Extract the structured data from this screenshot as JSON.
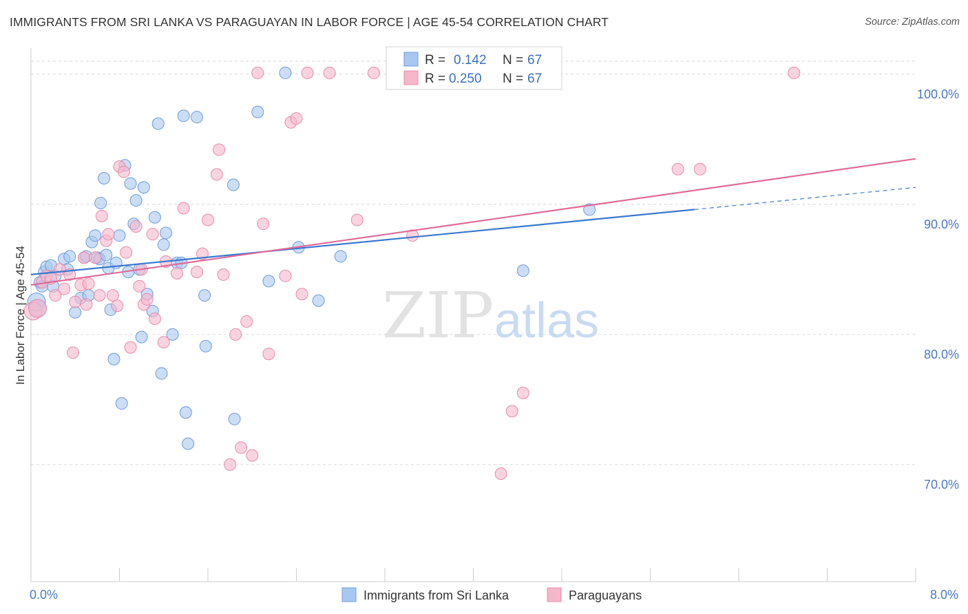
{
  "title": "IMMIGRANTS FROM SRI LANKA VS PARAGUAYAN IN LABOR FORCE | AGE 45-54 CORRELATION CHART",
  "source": "Source: ZipAtlas.com",
  "colors": {
    "blue_fill": "#a9c8f0",
    "blue_stroke": "#6f9bd8",
    "blue_line": "#3a78d0",
    "pink_fill": "#f5b8cb",
    "pink_stroke": "#e88aaa",
    "pink_line": "#e06a98",
    "tick_label": "#4a78c4",
    "grid": "#d8d8d8"
  },
  "watermark": {
    "zip": "ZIP",
    "atlas": "atlas"
  },
  "legend": {
    "rows": [
      {
        "r_label": "R =",
        "r_value": "0.142",
        "n_label": "N =",
        "n_value": "67"
      },
      {
        "r_label": "R =",
        "r_value": "0.250",
        "n_label": "N =",
        "n_value": "67"
      }
    ]
  },
  "chart_data": {
    "type": "scatter",
    "title": "IMMIGRANTS FROM SRI LANKA VS PARAGUAYAN IN LABOR FORCE | AGE 45-54 CORRELATION CHART",
    "xlabel": "",
    "ylabel": "In Labor Force | Age 45-54",
    "xlim": [
      0,
      8
    ],
    "ylim": [
      61,
      102
    ],
    "x_tick_labels": [
      {
        "value": 0,
        "label": "0.0%"
      },
      {
        "value": 8,
        "label": "8.0%"
      }
    ],
    "y_tick_labels": [
      {
        "value": 100,
        "label": "100.0%"
      },
      {
        "value": 90,
        "label": "90.0%"
      },
      {
        "value": 80,
        "label": "80.0%"
      },
      {
        "value": 70,
        "label": "70.0%"
      }
    ],
    "grid": true,
    "legend_placement": "top-center",
    "series": [
      {
        "name": "Immigrants from Sri Lanka",
        "color": "#a9c8f0",
        "trend": {
          "x": [
            0,
            6.0
          ],
          "y": [
            84.6,
            89.6
          ],
          "dashed_to": [
            8.0,
            91.3
          ]
        },
        "points": [
          [
            0.05,
            82.5
          ],
          [
            0.06,
            82.0
          ],
          [
            0.08,
            84.0
          ],
          [
            0.1,
            83.7
          ],
          [
            0.12,
            84.8
          ],
          [
            0.14,
            85.2
          ],
          [
            0.18,
            85.3
          ],
          [
            0.2,
            83.7
          ],
          [
            0.22,
            84.5
          ],
          [
            0.3,
            85.8
          ],
          [
            0.33,
            85.0
          ],
          [
            0.35,
            86.0
          ],
          [
            0.4,
            81.7
          ],
          [
            0.45,
            82.8
          ],
          [
            0.48,
            85.9
          ],
          [
            0.5,
            86.0
          ],
          [
            0.52,
            83.0
          ],
          [
            0.55,
            87.1
          ],
          [
            0.58,
            87.6
          ],
          [
            0.6,
            85.9
          ],
          [
            0.62,
            85.8
          ],
          [
            0.63,
            90.1
          ],
          [
            0.66,
            92.0
          ],
          [
            0.68,
            86.1
          ],
          [
            0.7,
            85.1
          ],
          [
            0.72,
            81.9
          ],
          [
            0.75,
            78.1
          ],
          [
            0.77,
            85.5
          ],
          [
            0.8,
            87.6
          ],
          [
            0.82,
            74.7
          ],
          [
            0.85,
            93.0
          ],
          [
            0.88,
            84.8
          ],
          [
            0.9,
            91.6
          ],
          [
            0.93,
            88.5
          ],
          [
            0.95,
            90.3
          ],
          [
            0.98,
            85.0
          ],
          [
            1.0,
            79.8
          ],
          [
            1.02,
            91.3
          ],
          [
            1.05,
            83.1
          ],
          [
            1.1,
            81.8
          ],
          [
            1.12,
            89.0
          ],
          [
            1.15,
            96.2
          ],
          [
            1.18,
            77.0
          ],
          [
            1.2,
            86.9
          ],
          [
            1.22,
            87.8
          ],
          [
            1.28,
            80.0
          ],
          [
            1.32,
            85.5
          ],
          [
            1.36,
            85.5
          ],
          [
            1.38,
            96.8
          ],
          [
            1.4,
            74.0
          ],
          [
            1.42,
            71.6
          ],
          [
            1.5,
            96.7
          ],
          [
            1.57,
            83.0
          ],
          [
            1.58,
            79.1
          ],
          [
            1.83,
            91.5
          ],
          [
            1.84,
            73.5
          ],
          [
            2.05,
            97.1
          ],
          [
            2.15,
            84.1
          ],
          [
            2.3,
            100.1
          ],
          [
            2.42,
            86.7
          ],
          [
            2.6,
            82.6
          ],
          [
            2.8,
            86.0
          ],
          [
            4.45,
            84.9
          ],
          [
            5.05,
            89.6
          ]
        ]
      },
      {
        "name": "Paraguayans",
        "color": "#f5b8cb",
        "trend": {
          "x": [
            0,
            8.0
          ],
          "y": [
            83.8,
            93.5
          ]
        },
        "points": [
          [
            0.02,
            81.8
          ],
          [
            0.06,
            82.0
          ],
          [
            0.1,
            84.0
          ],
          [
            0.14,
            84.5
          ],
          [
            0.18,
            84.3
          ],
          [
            0.22,
            83.0
          ],
          [
            0.26,
            85.0
          ],
          [
            0.3,
            83.5
          ],
          [
            0.35,
            84.6
          ],
          [
            0.38,
            78.6
          ],
          [
            0.4,
            82.5
          ],
          [
            0.45,
            83.8
          ],
          [
            0.48,
            85.9
          ],
          [
            0.5,
            82.3
          ],
          [
            0.52,
            83.9
          ],
          [
            0.58,
            85.9
          ],
          [
            0.62,
            83.0
          ],
          [
            0.64,
            89.1
          ],
          [
            0.68,
            87.2
          ],
          [
            0.7,
            87.7
          ],
          [
            0.74,
            83.0
          ],
          [
            0.78,
            82.2
          ],
          [
            0.8,
            92.9
          ],
          [
            0.84,
            92.5
          ],
          [
            0.86,
            86.3
          ],
          [
            0.9,
            79.0
          ],
          [
            0.95,
            88.3
          ],
          [
            0.98,
            83.7
          ],
          [
            1.0,
            85.0
          ],
          [
            1.02,
            82.3
          ],
          [
            1.05,
            82.7
          ],
          [
            1.1,
            87.7
          ],
          [
            1.12,
            81.2
          ],
          [
            1.2,
            79.4
          ],
          [
            1.22,
            85.6
          ],
          [
            1.32,
            84.7
          ],
          [
            1.38,
            89.7
          ],
          [
            1.5,
            84.8
          ],
          [
            1.55,
            86.2
          ],
          [
            1.6,
            88.8
          ],
          [
            1.68,
            92.3
          ],
          [
            1.7,
            94.2
          ],
          [
            1.74,
            84.6
          ],
          [
            1.8,
            70.0
          ],
          [
            1.85,
            80.0
          ],
          [
            1.9,
            71.3
          ],
          [
            1.95,
            81.0
          ],
          [
            2.0,
            70.7
          ],
          [
            2.05,
            100.1
          ],
          [
            2.1,
            88.5
          ],
          [
            2.15,
            78.5
          ],
          [
            2.3,
            84.5
          ],
          [
            2.35,
            96.3
          ],
          [
            2.4,
            96.6
          ],
          [
            2.45,
            83.1
          ],
          [
            2.5,
            100.1
          ],
          [
            2.7,
            100.1
          ],
          [
            2.95,
            88.8
          ],
          [
            3.1,
            100.1
          ],
          [
            3.45,
            87.6
          ],
          [
            4.25,
            69.3
          ],
          [
            4.35,
            74.1
          ],
          [
            4.45,
            75.5
          ],
          [
            5.85,
            92.7
          ],
          [
            6.05,
            92.7
          ],
          [
            6.9,
            100.1
          ]
        ]
      }
    ]
  }
}
